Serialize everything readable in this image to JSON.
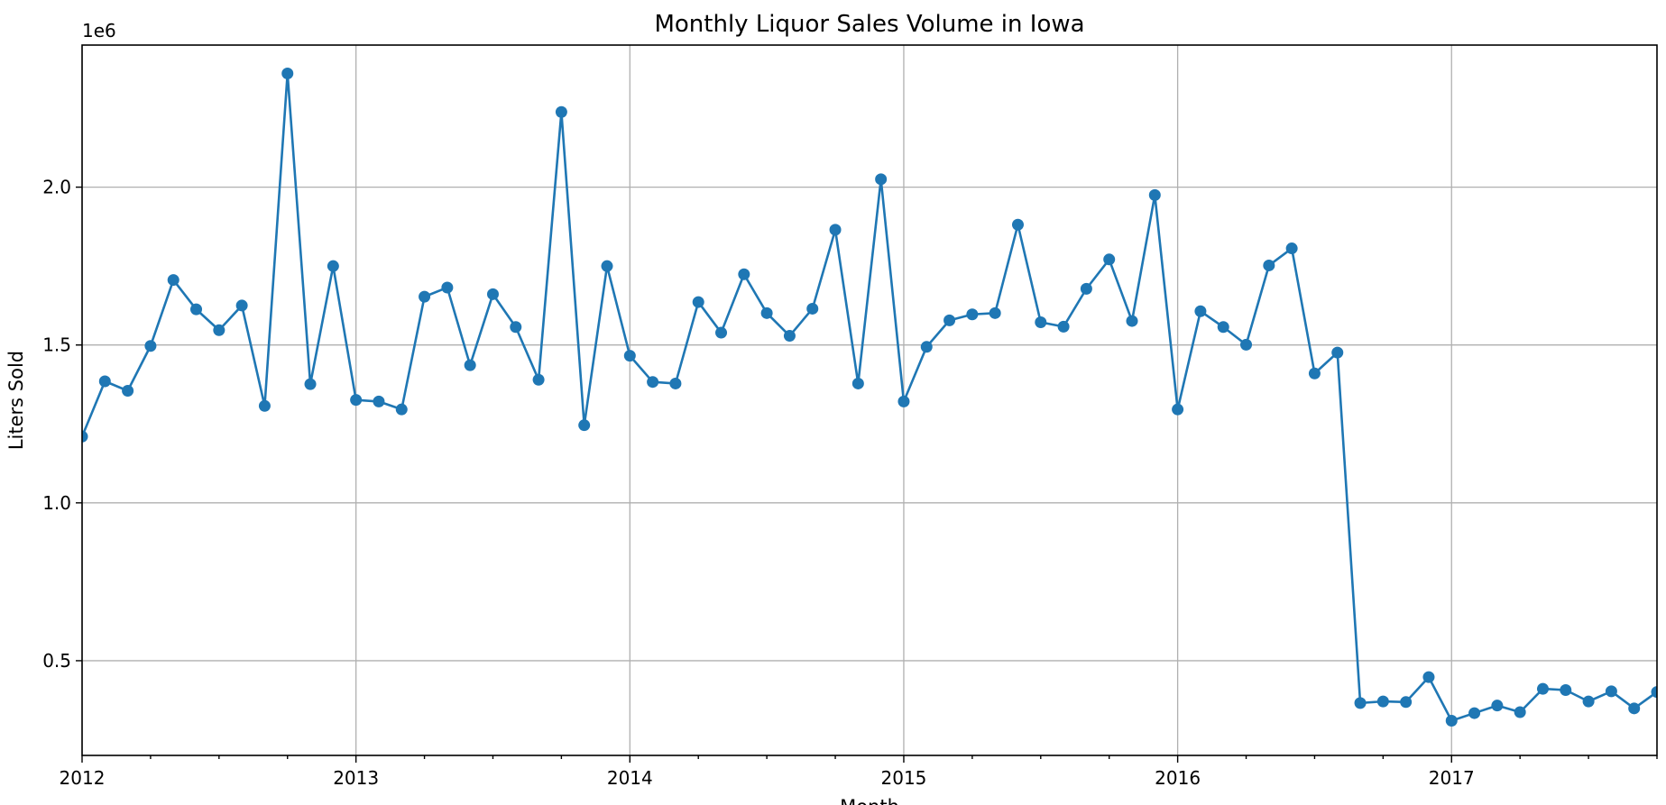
{
  "chart_data": {
    "type": "line",
    "title": "Monthly Liquor Sales Volume in Iowa",
    "xlabel": "Month",
    "ylabel": "Liters Sold",
    "y_offset_label": "1e6",
    "series_color": "#1f77b4",
    "marker": "circle",
    "grid": true,
    "start_month": "2012-01",
    "xlim": [
      "2012-01",
      "2017-10"
    ],
    "ylim": [
      0.2,
      2.45
    ],
    "y_ticks": [
      0.5,
      1.0,
      1.5,
      2.0
    ],
    "y_tick_labels": [
      "0.5",
      "1.0",
      "1.5",
      "2.0"
    ],
    "x_tick_years": [
      2012,
      2013,
      2014,
      2015,
      2016,
      2017
    ],
    "x_tick_labels": [
      "2012",
      "2013",
      "2014",
      "2015",
      "2016",
      "2017"
    ],
    "series": [
      {
        "values": [
          1.21,
          1.385,
          1.355,
          1.497,
          1.706,
          1.613,
          1.547,
          1.625,
          1.307,
          2.36,
          1.376,
          1.75,
          1.326,
          1.321,
          1.296,
          1.653,
          1.682,
          1.436,
          1.661,
          1.557,
          1.39,
          2.238,
          1.246,
          1.75,
          1.466,
          1.383,
          1.378,
          1.636,
          1.539,
          1.724,
          1.601,
          1.529,
          1.615,
          1.865,
          1.378,
          2.025,
          1.321,
          1.494,
          1.578,
          1.597,
          1.601,
          1.881,
          1.572,
          1.558,
          1.678,
          1.771,
          1.576,
          1.975,
          1.296,
          1.607,
          1.557,
          1.501,
          1.752,
          1.806,
          1.41,
          1.476,
          0.366,
          0.371,
          0.369,
          0.448,
          0.31,
          0.334,
          0.358,
          0.337,
          0.411,
          0.407,
          0.371,
          0.403,
          0.349,
          0.401
        ]
      }
    ]
  }
}
